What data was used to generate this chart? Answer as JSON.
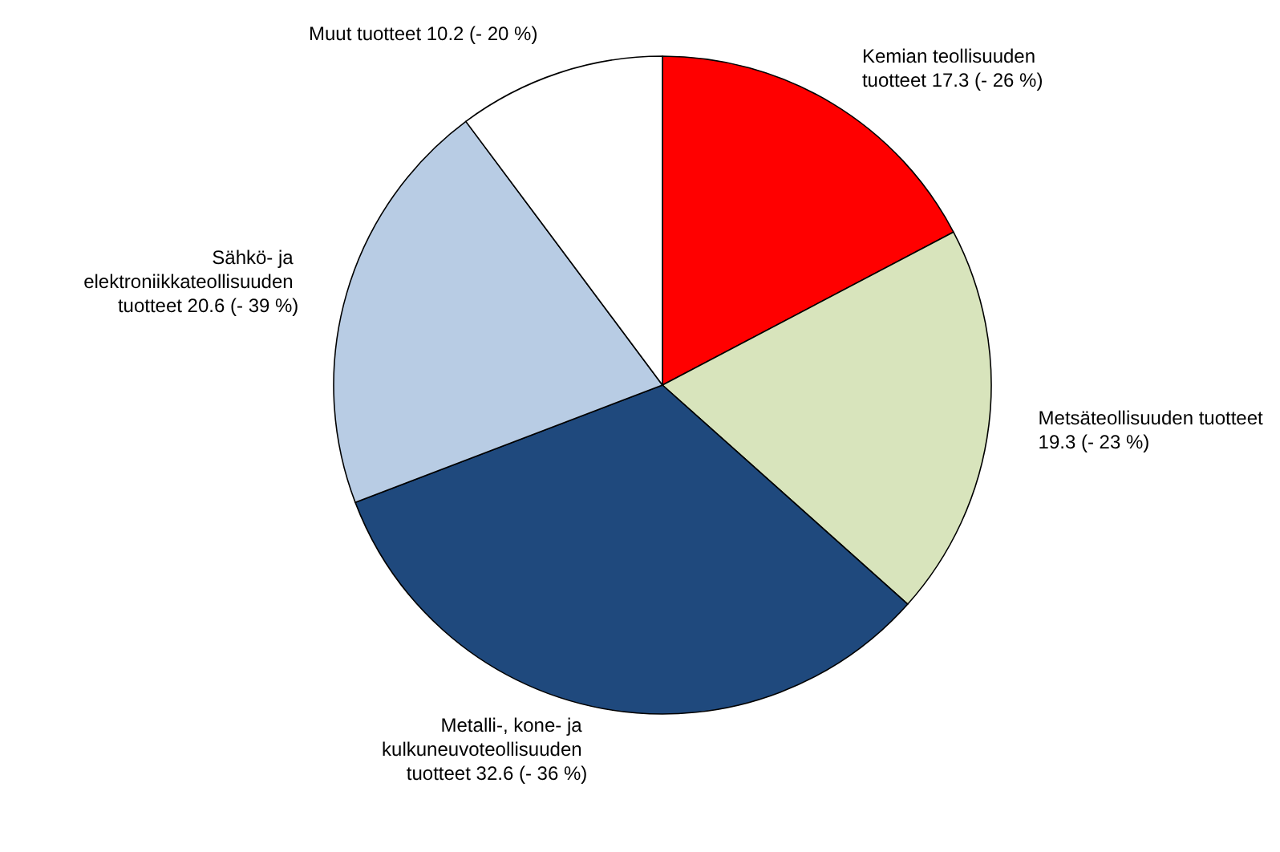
{
  "chart_data": {
    "type": "pie",
    "categories": [
      "Kemian teollisuuden tuotteet",
      "Metsäteollisuuden tuotteet",
      "Metalli-, kone- ja kulkuneuvoteollisuuden tuotteet",
      "Sähkö- ja elektroniikkateollisuuden tuotteet",
      "Muut tuotteet"
    ],
    "values": [
      17.3,
      19.3,
      32.6,
      20.6,
      10.2
    ],
    "value_labels": [
      "17.3 (- 26 %)",
      "19.3 (- 23 %)",
      "32.6 (- 36 %)",
      "20.6 (- 39 %)",
      "10.2 (- 20 %)"
    ],
    "colors": [
      "#ff0000",
      "#d8e4bc",
      "#1f497d",
      "#b8cce4",
      "#ffffff"
    ],
    "legend": false
  }
}
